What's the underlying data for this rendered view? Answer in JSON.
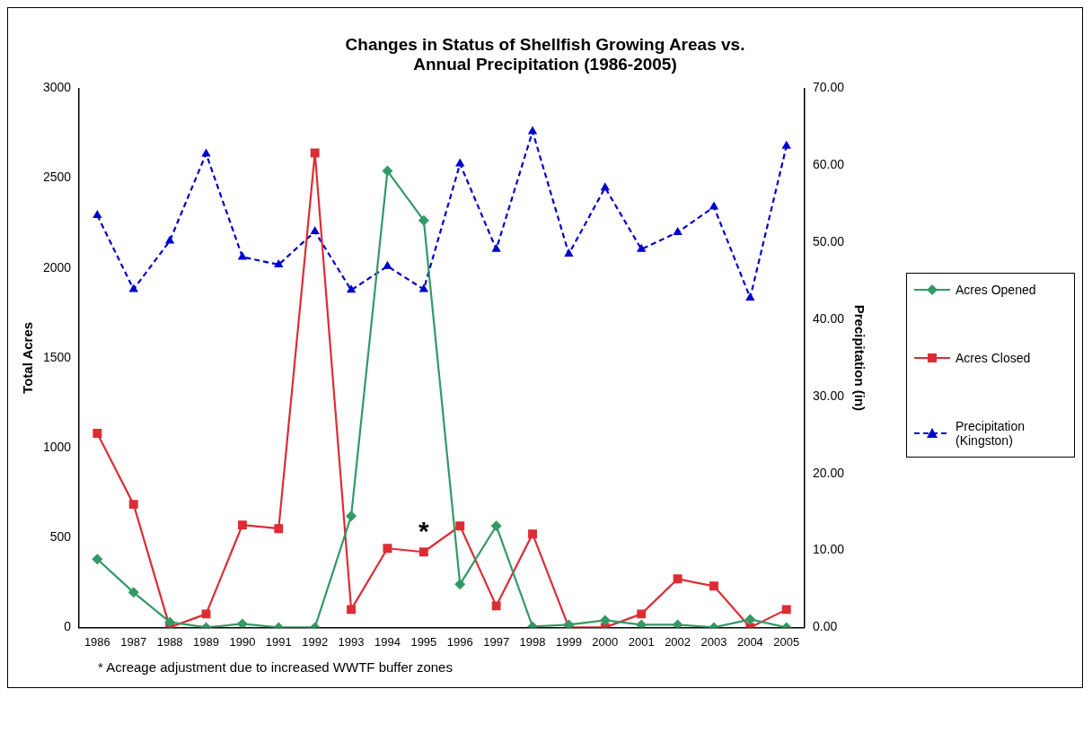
{
  "chart_data": {
    "type": "line",
    "title": "Changes in Status of Shellfish Growing Areas vs. Annual Precipitation (1986-2005)",
    "ylabel": "Total Acres",
    "y2label": "Precipitation (in)",
    "categories": [
      "1986",
      "1987",
      "1988",
      "1989",
      "1990",
      "1991",
      "1992",
      "1993",
      "1994",
      "1995",
      "1996",
      "1997",
      "1998",
      "1999",
      "2000",
      "2001",
      "2002",
      "2003",
      "2004",
      "2005"
    ],
    "series": [
      {
        "name": "Acres Opened",
        "color": "#339966",
        "marker": "diamond",
        "line_style": "solid",
        "values": [
          380,
          195,
          30,
          0,
          20,
          0,
          0,
          620,
          2540,
          2265,
          240,
          565,
          5,
          15,
          40,
          15,
          15,
          0,
          45,
          0
        ]
      },
      {
        "name": "Acres Closed",
        "color": "#dd2c34",
        "marker": "square",
        "line_style": "solid",
        "values": [
          1080,
          685,
          0,
          75,
          570,
          550,
          2640,
          100,
          440,
          420,
          565,
          120,
          520,
          0,
          0,
          75,
          270,
          230,
          0,
          100
        ]
      },
      {
        "name": "Precipitation (Kingston)",
        "color": "#0000cc",
        "marker": "triangle",
        "line_style": "dashed",
        "axis": "y2",
        "values": [
          53.5,
          43.9,
          50.2,
          61.5,
          48.1,
          47.1,
          51.4,
          43.8,
          46.9,
          43.9,
          60.2,
          49.1,
          64.4,
          48.5,
          57.1,
          49.1,
          51.3,
          54.6,
          42.8,
          62.5
        ]
      }
    ],
    "ylim": [
      0,
      3000
    ],
    "yticks": [
      0,
      500,
      1000,
      1500,
      2000,
      2500,
      3000
    ],
    "y2lim": [
      0,
      70
    ],
    "y2ticks": [
      {
        "value": 0,
        "label": "0.00"
      },
      {
        "value": 10,
        "label": "10.00"
      },
      {
        "value": 20,
        "label": "20.00"
      },
      {
        "value": 30,
        "label": "30.00"
      },
      {
        "value": 40,
        "label": "40.00"
      },
      {
        "value": 50,
        "label": "50.00"
      },
      {
        "value": 60,
        "label": "60.00"
      },
      {
        "value": 70,
        "label": "70.00"
      }
    ],
    "grid": false,
    "legend": "right",
    "annotations": [
      {
        "text": "*",
        "x": "1995",
        "y": 420
      },
      "* Acreage adjustment due to increased WWTF  buffer zones"
    ]
  }
}
